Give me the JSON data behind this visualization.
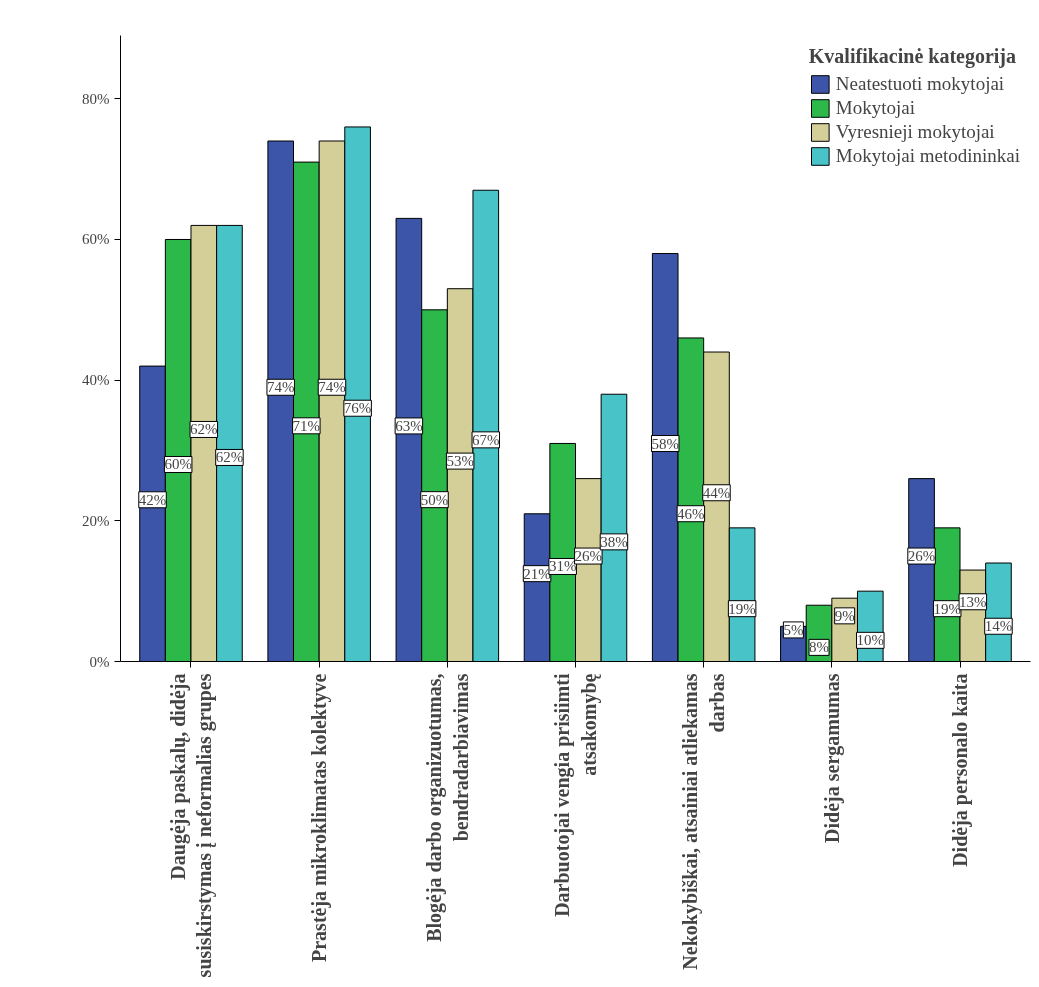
{
  "chart_data": {
    "type": "bar",
    "categories": [
      "Daugėja paskalų, didėja susiskirstymas į neformalias grupes",
      "Prastėja mikroklimatas kolektyve",
      "Blogėja darbo organizuotumas, bendradarbiavimas",
      "Darbuotojai vengia prisiimti atsakomybę",
      "Nekokybiškai, atsainiai atliekamas darbas",
      "Didėja sergamumas",
      "Didėja personalo kaita"
    ],
    "legend_title": "Kvalifikacinė kategorija",
    "series": [
      {
        "name": "Neatestuoti mokytojai",
        "color": "#3d55a8",
        "values": [
          42,
          74,
          63,
          21,
          58,
          5,
          26
        ],
        "value_labels": [
          "42%",
          "74%",
          "63%",
          "21%",
          "58%",
          "5%",
          "26%"
        ]
      },
      {
        "name": "Mokytojai",
        "color": "#2db84a",
        "values": [
          60,
          71,
          50,
          31,
          46,
          8,
          19
        ],
        "value_labels": [
          "60%",
          "71%",
          "50%",
          "31%",
          "46%",
          "8%",
          "19%"
        ]
      },
      {
        "name": "Vyresnieji mokytojai",
        "color": "#d4cf98",
        "values": [
          62,
          74,
          53,
          26,
          44,
          9,
          13
        ],
        "value_labels": [
          "62%",
          "74%",
          "53%",
          "26%",
          "44%",
          "9%",
          "13%"
        ]
      },
      {
        "name": "Mokytojai metodininkai",
        "color": "#48c3c8",
        "values": [
          62,
          76,
          67,
          38,
          19,
          10,
          14
        ],
        "value_labels": [
          "62%",
          "76%",
          "67%",
          "38%",
          "19%",
          "10%",
          "14%"
        ]
      }
    ],
    "ylim": [
      0,
      89
    ],
    "yticks": [
      {
        "value": 0,
        "label": "0%"
      },
      {
        "value": 20,
        "label": "20%"
      },
      {
        "value": 40,
        "label": "40%"
      },
      {
        "value": 60,
        "label": "60%"
      },
      {
        "value": 80,
        "label": "80%"
      }
    ],
    "grid": false,
    "legend": "top right"
  }
}
